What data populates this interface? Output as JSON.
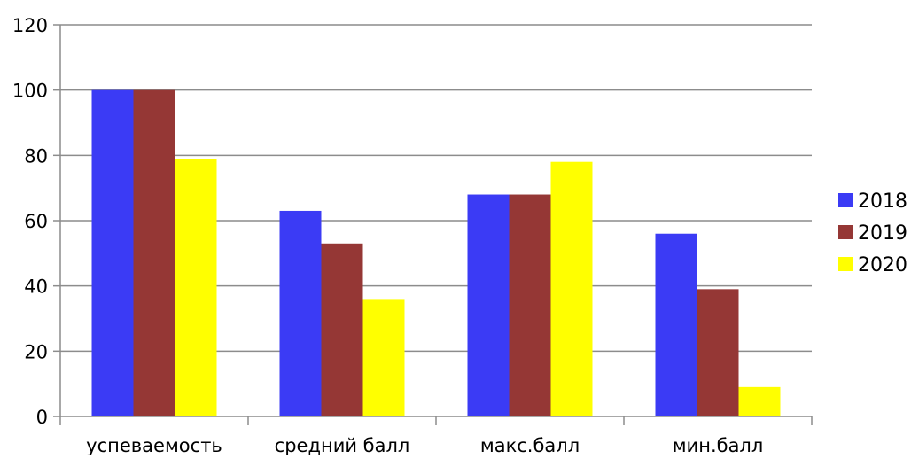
{
  "chart_data": {
    "type": "bar",
    "title": "",
    "xlabel": "",
    "ylabel": "",
    "categories": [
      "успеваемость",
      "средний балл",
      "макс.балл",
      "мин.балл"
    ],
    "series": [
      {
        "name": "2018",
        "color": "#3b3bf5",
        "values": [
          100,
          63,
          68,
          56
        ]
      },
      {
        "name": "2019",
        "color": "#953735",
        "values": [
          100,
          53,
          68,
          39
        ]
      },
      {
        "name": "2020",
        "color": "#ffff00",
        "values": [
          79,
          36,
          78,
          9
        ]
      }
    ],
    "ylim": [
      0,
      120
    ],
    "yticks": [
      0,
      20,
      40,
      60,
      80,
      100,
      120
    ],
    "ytick_labels": [
      "0",
      "20",
      "40",
      "60",
      "80",
      "100",
      "120"
    ],
    "grid": true,
    "legend_position": "right"
  }
}
